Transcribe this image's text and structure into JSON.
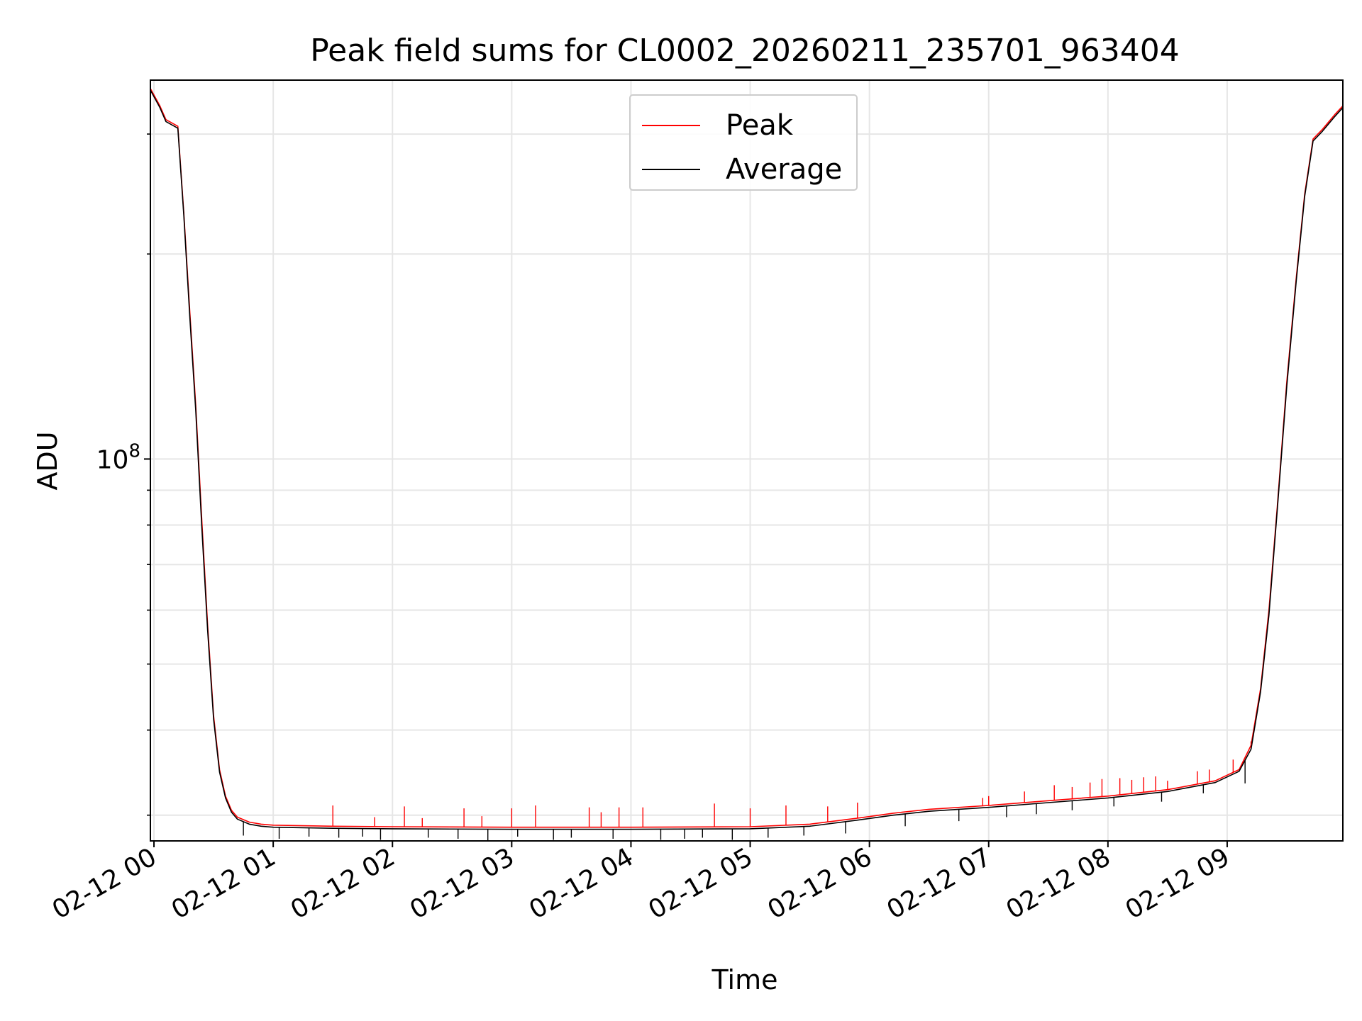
{
  "chart_data": {
    "type": "line",
    "title": "Peak field sums for CL0002_20260211_235701_963404",
    "xlabel": "Time",
    "ylabel": "ADU",
    "yscale": "log",
    "ylim": [
      27500000,
      360000000
    ],
    "y_major_ticks": [
      {
        "value": 100000000,
        "base": "10",
        "exp": "8"
      }
    ],
    "y_minor_ticks": [
      30000000,
      40000000,
      50000000,
      60000000,
      70000000,
      80000000,
      90000000,
      200000000,
      300000000
    ],
    "xlim": [
      -0.03,
      9.97
    ],
    "x_ticks": [
      {
        "value": 0,
        "label": "02-12 00"
      },
      {
        "value": 1,
        "label": "02-12 01"
      },
      {
        "value": 2,
        "label": "02-12 02"
      },
      {
        "value": 3,
        "label": "02-12 03"
      },
      {
        "value": 4,
        "label": "02-12 04"
      },
      {
        "value": 5,
        "label": "02-12 05"
      },
      {
        "value": 6,
        "label": "02-12 06"
      },
      {
        "value": 7,
        "label": "02-12 07"
      },
      {
        "value": 8,
        "label": "02-12 08"
      },
      {
        "value": 9,
        "label": "02-12 09"
      }
    ],
    "grid": true,
    "legend_position": "top-center",
    "series": [
      {
        "name": "Peak",
        "color": "#ff0000",
        "x_hours": [
          -0.03,
          0.05,
          0.1,
          0.2,
          0.25,
          0.3,
          0.35,
          0.4,
          0.45,
          0.5,
          0.55,
          0.6,
          0.65,
          0.7,
          0.8,
          0.9,
          1.0,
          1.5,
          2.0,
          3.0,
          4.0,
          5.0,
          5.5,
          5.9,
          6.2,
          6.5,
          7.0,
          7.5,
          8.0,
          8.5,
          8.9,
          9.1,
          9.2,
          9.28,
          9.35,
          9.42,
          9.5,
          9.58,
          9.65,
          9.72,
          9.8,
          9.9,
          9.97
        ],
        "values": [
          350000000,
          330000000,
          315000000,
          308000000,
          230000000,
          165000000,
          120000000,
          82000000,
          57000000,
          42000000,
          35000000,
          32000000,
          30500000,
          29800000,
          29300000,
          29100000,
          29000000,
          28900000,
          28850000,
          28800000,
          28800000,
          28850000,
          29100000,
          29700000,
          30200000,
          30600000,
          31000000,
          31500000,
          32000000,
          32700000,
          33700000,
          35000000,
          38000000,
          46000000,
          60000000,
          85000000,
          130000000,
          185000000,
          245000000,
          295000000,
          305000000,
          320000000,
          330000000
        ]
      },
      {
        "name": "Average",
        "color": "#000000",
        "x_hours": [
          -0.03,
          0.05,
          0.1,
          0.2,
          0.25,
          0.3,
          0.35,
          0.4,
          0.45,
          0.5,
          0.55,
          0.6,
          0.65,
          0.7,
          0.8,
          0.9,
          1.0,
          1.5,
          2.0,
          3.0,
          4.0,
          5.0,
          5.5,
          5.9,
          6.2,
          6.5,
          7.0,
          7.5,
          8.0,
          8.5,
          8.9,
          9.1,
          9.2,
          9.28,
          9.35,
          9.42,
          9.5,
          9.58,
          9.65,
          9.72,
          9.8,
          9.9,
          9.97
        ],
        "values": [
          348000000,
          328000000,
          313000000,
          306000000,
          228000000,
          162000000,
          118000000,
          80000000,
          56000000,
          41500000,
          34700000,
          31800000,
          30300000,
          29600000,
          29100000,
          28900000,
          28800000,
          28700000,
          28650000,
          28600000,
          28600000,
          28650000,
          28900000,
          29500000,
          30000000,
          30400000,
          30800000,
          31300000,
          31800000,
          32500000,
          33500000,
          34800000,
          37500000,
          45500000,
          59000000,
          84000000,
          128000000,
          183000000,
          243000000,
          293000000,
          303000000,
          318000000,
          328000000
        ]
      }
    ],
    "peak_spikes_hours": [
      1.5,
      1.85,
      2.1,
      2.25,
      2.6,
      2.75,
      3.0,
      3.2,
      3.65,
      3.75,
      3.9,
      4.1,
      4.7,
      5.0,
      5.3,
      5.65,
      5.9,
      6.95,
      7.0,
      7.3,
      7.55,
      7.7,
      7.85,
      7.95,
      8.1,
      8.2,
      8.3,
      8.4,
      8.5,
      8.75,
      8.85,
      9.05,
      9.2
    ],
    "peak_spike_values": [
      31000000,
      29800000,
      30900000,
      29700000,
      30700000,
      29900000,
      30700000,
      31000000,
      30800000,
      30300000,
      30800000,
      30800000,
      31200000,
      30700000,
      31000000,
      30900000,
      31300000,
      31800000,
      32000000,
      32500000,
      33200000,
      33000000,
      33500000,
      33900000,
      34000000,
      33800000,
      34100000,
      34200000,
      33700000,
      34800000,
      35000000,
      36200000,
      38500000
    ],
    "avg_dips_hours": [
      0.75,
      1.05,
      1.3,
      1.55,
      1.75,
      1.9,
      2.3,
      2.55,
      2.8,
      3.05,
      3.35,
      3.5,
      3.85,
      4.25,
      4.45,
      4.6,
      4.85,
      5.15,
      5.45,
      5.8,
      6.3,
      6.75,
      7.15,
      7.4,
      7.7,
      8.05,
      8.45,
      8.8,
      9.15
    ],
    "avg_dip_values": [
      28000000,
      27700000,
      27900000,
      27800000,
      27900000,
      27600000,
      27800000,
      27700000,
      27500000,
      27900000,
      27600000,
      27800000,
      27700000,
      27600000,
      27700000,
      27800000,
      27600000,
      27800000,
      28000000,
      28200000,
      28900000,
      29400000,
      29800000,
      30100000,
      30500000,
      30900000,
      31400000,
      32300000,
      33400000
    ]
  },
  "legend": {
    "peak_label": "Peak",
    "average_label": "Average",
    "peak_color": "#ff0000",
    "average_color": "#000000"
  }
}
